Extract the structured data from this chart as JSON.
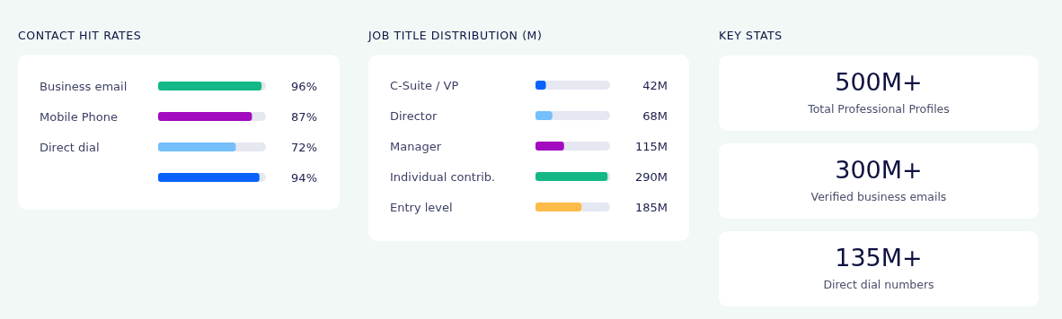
{
  "chart_data": [
    {
      "type": "bar",
      "orientation": "horizontal",
      "title": "CONTACT HIT RATES",
      "categories": [
        "Business email",
        "Mobile Phone",
        "Direct dial",
        null
      ],
      "values": [
        96,
        87,
        72,
        94
      ],
      "colors": [
        "#14b886",
        "#a20bbf",
        "#74bffc",
        "#0a62fb"
      ],
      "value_labels": [
        "96%",
        "87%",
        "72%",
        "94%"
      ],
      "xlim": [
        0,
        100
      ],
      "tick_labels": "y"
    },
    {
      "type": "bar",
      "orientation": "horizontal",
      "title": "JOB TITLE DISTRIBUTION (M)",
      "categories": [
        "C-Suite / VP",
        "Director",
        "Manager",
        "Individual contrib.",
        "Entry level"
      ],
      "values": [
        42,
        68,
        115,
        290,
        185
      ],
      "colors": [
        "#0a62fb",
        "#74bffc",
        "#a20bbf",
        "#14b886",
        "#fdbb4a"
      ],
      "value_labels": [
        "42M",
        "68M",
        "115M",
        "290M",
        "185M"
      ],
      "xlim": [
        0,
        300
      ],
      "tick_labels": "y"
    },
    {
      "type": "other",
      "title": "KEY STATS",
      "annotations": [
        "500M+",
        "Total Professional Profiles",
        "300M+",
        "Verified business emails",
        "135M+",
        "Direct dial numbers"
      ]
    }
  ]
}
